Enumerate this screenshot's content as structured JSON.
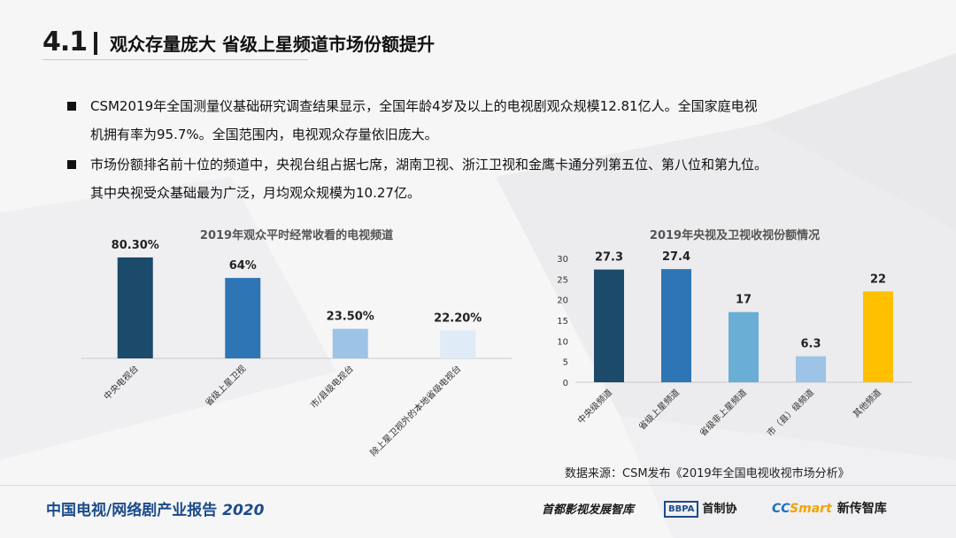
{
  "header": {
    "number": "4.1",
    "title": "观众存量庞大 省级上星频道市场份额提升"
  },
  "bullets": [
    {
      "line1": "CSM2019年全国测量仪基础研究调查结果显示，全国年龄4岁及以上的电视剧观众规模12.81亿人。全国家庭电视",
      "line2": "机拥有率为95.7%。全国范围内，电视观众存量依旧庞大。"
    },
    {
      "line1": "市场份额排名前十位的频道中，央视台组占据七席，湖南卫视、浙江卫视和金鹰卡通分列第五位、第八位和第九位。",
      "line2": "其中央视受众基础最为广泛，月均观众规模为10.27亿。"
    }
  ],
  "chart_data": [
    {
      "type": "bar",
      "title": "2019年观众平时经常收看的电视频道",
      "categories": [
        "中央电视台",
        "省级上星卫视",
        "市/县级电视台",
        "除上星卫视外的本地省级电视台"
      ],
      "values": [
        80.3,
        64,
        23.5,
        22.2
      ],
      "value_labels": [
        "80.30%",
        "64%",
        "23.50%",
        "22.20%"
      ],
      "colors": [
        "#1b4a6b",
        "#2e75b6",
        "#9dc3e6",
        "#dfebf7"
      ],
      "ylim": [
        0,
        100
      ],
      "grid": false,
      "legend": "none"
    },
    {
      "type": "bar",
      "title": "2019年央视及卫视收视份额情况",
      "categories": [
        "中央级频道",
        "省级上星频道",
        "省级非上星频道",
        "市（县）级频道",
        "其他频道"
      ],
      "values": [
        27.3,
        27.4,
        17,
        6.3,
        22
      ],
      "value_labels": [
        "27.3",
        "27.4",
        "17",
        "6.3",
        "22"
      ],
      "colors": [
        "#1b4a6b",
        "#2e75b6",
        "#6aaed6",
        "#9dc3e6",
        "#ffc000"
      ],
      "yticks": [
        "0",
        "5",
        "10",
        "15",
        "20",
        "25",
        "30"
      ],
      "ylim": [
        0,
        30
      ],
      "grid": false,
      "legend": "none"
    }
  ],
  "source": "数据来源：CSM发布《2019年全国电视收视市场分析》",
  "footer": {
    "title": "中国电视/网络剧产业报告",
    "year": "2020",
    "logo1": "首都影视发展智库",
    "logo2_box": "BBPA",
    "logo2_text": "首制协",
    "logo3_cc": "CC",
    "logo3_smart": "Smart",
    "logo3_text": "新传智库"
  }
}
